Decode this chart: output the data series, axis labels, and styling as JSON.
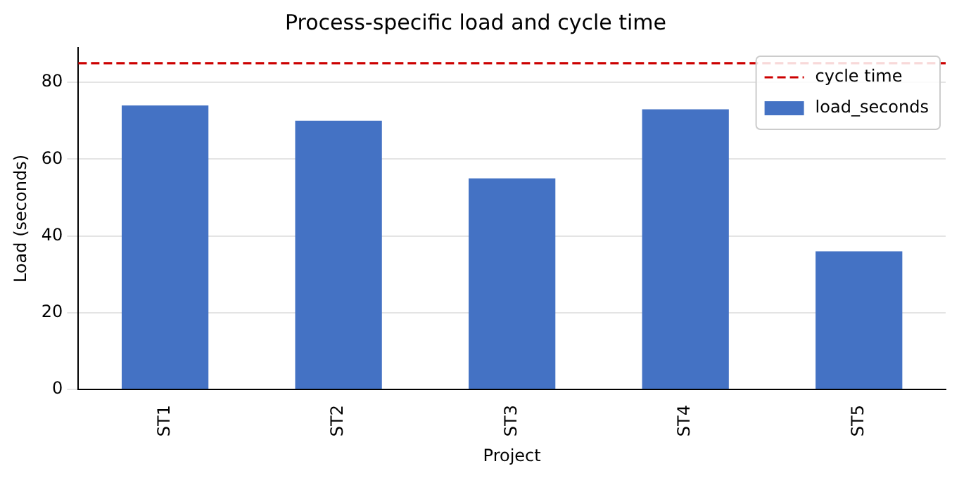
{
  "chart_data": {
    "type": "bar",
    "title": "Process-specific load and cycle time",
    "xlabel": "Project",
    "ylabel": "Load (seconds)",
    "categories": [
      "ST1",
      "ST2",
      "ST3",
      "ST4",
      "ST5"
    ],
    "series": [
      {
        "name": "load_seconds",
        "color": "#4472c4",
        "values": [
          74,
          70,
          55,
          73,
          36
        ]
      }
    ],
    "ylim": [
      0,
      89
    ],
    "yticks": [
      0,
      20,
      40,
      60,
      80
    ],
    "grid": "y",
    "legend": "top right",
    "ref_lines": [
      {
        "axis": "y",
        "value": 85,
        "label": "cycle time",
        "color": "#cc0000",
        "line_style": "dashed"
      }
    ]
  }
}
